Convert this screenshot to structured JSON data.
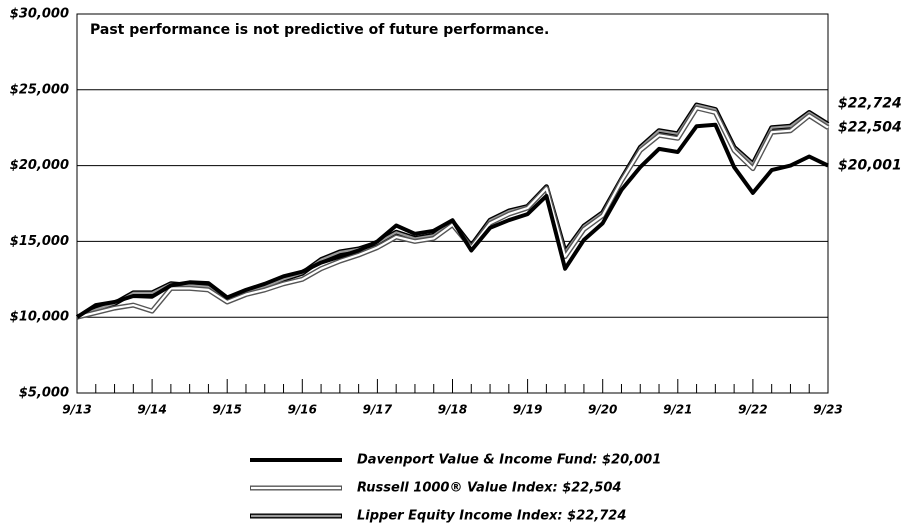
{
  "chart_data": {
    "type": "line",
    "annotation": "Past performance is not predictive of future performance.",
    "categories": [
      "9/13",
      null,
      null,
      null,
      "9/14",
      null,
      null,
      null,
      "9/15",
      null,
      null,
      null,
      "9/16",
      null,
      null,
      null,
      "9/17",
      null,
      null,
      null,
      "9/18",
      null,
      null,
      null,
      "9/19",
      null,
      null,
      null,
      "9/20",
      null,
      null,
      null,
      "9/21",
      null,
      null,
      null,
      "9/22",
      null,
      null,
      null,
      "9/23"
    ],
    "ylim": [
      5000,
      30000
    ],
    "yticks": [
      {
        "value": 5000,
        "label": "$5,000"
      },
      {
        "value": 10000,
        "label": "$10,000"
      },
      {
        "value": 15000,
        "label": "$15,000"
      },
      {
        "value": 20000,
        "label": "$20,000"
      },
      {
        "value": 25000,
        "label": "$25,000"
      },
      {
        "value": 30000,
        "label": "$30,000"
      }
    ],
    "grid": true,
    "series": [
      {
        "name": "Davenport Value & Income Fund: $20,001",
        "end_label": "$20,001",
        "color": "#000000",
        "edge_color": "#000000",
        "values": [
          10000,
          10800,
          11000,
          11400,
          11350,
          12100,
          12300,
          12250,
          11300,
          11800,
          12200,
          12700,
          13000,
          13600,
          14000,
          14400,
          15000,
          16050,
          15500,
          15700,
          16400,
          14400,
          15900,
          16400,
          16800,
          18000,
          13200,
          15100,
          16200,
          18400,
          19900,
          21100,
          20900,
          22600,
          22700,
          19900,
          18200,
          19700,
          20000,
          20600,
          20001
        ]
      },
      {
        "name": "Russell 1000® Value Index: $22,504",
        "end_label": "$22,504",
        "color": "#ffffff",
        "edge_color": "#555555",
        "values": [
          10000,
          10300,
          10600,
          10800,
          10400,
          11900,
          11900,
          11800,
          11000,
          11500,
          11800,
          12200,
          12500,
          13200,
          13700,
          14100,
          14600,
          15300,
          15000,
          15200,
          16100,
          14600,
          16200,
          16800,
          17200,
          18500,
          14000,
          15800,
          16700,
          19000,
          21000,
          22000,
          21800,
          23800,
          23500,
          21000,
          19800,
          22200,
          22300,
          23300,
          22504
        ]
      },
      {
        "name": "Lipper Equity Income Index: $22,724",
        "end_label": "$22,724",
        "color": "#9a9a9a",
        "edge_color": "#000000",
        "values": [
          10000,
          10500,
          10900,
          11600,
          11600,
          12200,
          12100,
          12000,
          11100,
          11700,
          12000,
          12500,
          12900,
          13800,
          14300,
          14500,
          14900,
          15600,
          15200,
          15400,
          16300,
          14700,
          16400,
          17000,
          17300,
          18600,
          14300,
          16000,
          16900,
          19100,
          21200,
          22300,
          22100,
          24000,
          23700,
          21200,
          20100,
          22500,
          22600,
          23500,
          22724
        ]
      }
    ]
  }
}
